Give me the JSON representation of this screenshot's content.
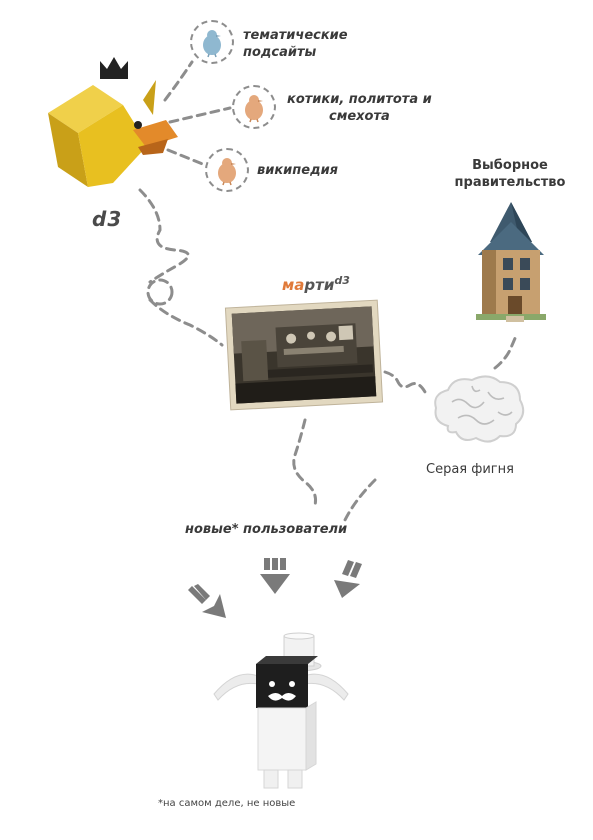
{
  "subsites": [
    {
      "label": "тематические\nподсайты",
      "color": "#8fb8d0"
    },
    {
      "label": "котики, политота и\nсмехота",
      "color": "#e4a87c"
    },
    {
      "label": "википедия",
      "color": "#e4a87c"
    }
  ],
  "d3_label": "d3",
  "marti": {
    "accent": "ма",
    "rest": "рти",
    "sup": "d3"
  },
  "government_label": "Выборное\nправительство",
  "brain_label": "Серая фигня",
  "users_label": "новые* пользователи",
  "footnote": "*на самом деле, не новые",
  "colors": {
    "duck_yellow": "#e8c020",
    "duck_beak": "#e38a2a",
    "dashed_line": "#8d8d8d",
    "arrow_gray": "#7a7a7a",
    "accent_orange": "#e07a3a"
  }
}
